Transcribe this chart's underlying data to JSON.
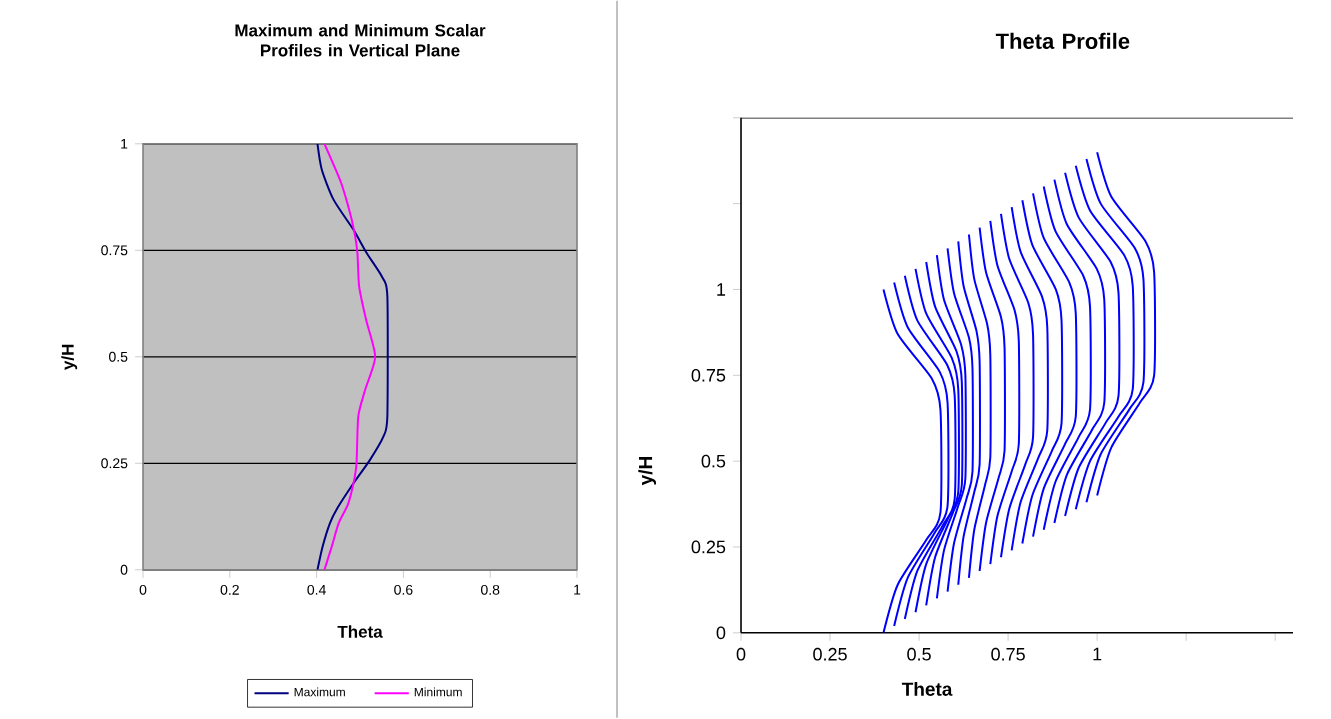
{
  "chart_data": [
    {
      "type": "line",
      "title": "Maximum and Minimum Scalar Profiles in Vertical Plane",
      "xlabel": "Theta",
      "ylabel": "y/H",
      "xlim": [
        0,
        1
      ],
      "ylim": [
        0,
        1
      ],
      "xticks": [
        0,
        0.2,
        0.4,
        0.6,
        0.8,
        1
      ],
      "yticks": [
        0,
        0.25,
        0.5,
        0.75,
        1
      ],
      "grid": "y",
      "legend": "bottom",
      "series": [
        {
          "name": "Maximum",
          "color": "#000080",
          "x": [
            0.402,
            0.414,
            0.431,
            0.448,
            0.485,
            0.523,
            0.554,
            0.563,
            0.563,
            0.55,
            0.515,
            0.485,
            0.439,
            0.412,
            0.402
          ],
          "values": [
            0,
            0.055,
            0.11,
            0.145,
            0.203,
            0.258,
            0.313,
            0.36,
            0.642,
            0.689,
            0.744,
            0.798,
            0.869,
            0.939,
            1.0
          ]
        },
        {
          "name": "Minimum",
          "color": "#ff00ff",
          "x": [
            0.418,
            0.435,
            0.451,
            0.472,
            0.485,
            0.492,
            0.496,
            0.512,
            0.535,
            0.514,
            0.498,
            0.494,
            0.486,
            0.473,
            0.454,
            0.418
          ],
          "values": [
            0,
            0.055,
            0.11,
            0.153,
            0.203,
            0.25,
            0.36,
            0.423,
            0.5,
            0.587,
            0.665,
            0.744,
            0.798,
            0.853,
            0.915,
            1.0
          ]
        }
      ]
    },
    {
      "type": "line",
      "title": "Theta Profile",
      "xlabel": "Theta",
      "ylabel": "y/H",
      "xlim": [
        0,
        1.55
      ],
      "ylim": [
        0,
        1.5
      ],
      "xticks": [
        0,
        0.25,
        0.5,
        0.75,
        1,
        {
          "value": 1.25,
          "label": null
        },
        {
          "value": 1.5,
          "label": null
        }
      ],
      "yticks": [
        0,
        0.25,
        0.5,
        0.75,
        1,
        {
          "value": 1.25,
          "label": null
        },
        {
          "value": 1.5,
          "label": null
        }
      ],
      "series": [
        {
          "color": "#0000ff",
          "x": [
            0.4,
            0.44,
            0.52,
            0.56,
            0.56,
            0.536,
            0.44,
            0.4
          ],
          "values": [
            0,
            0.14,
            0.27,
            0.35,
            0.65,
            0.74,
            0.87,
            1.0
          ]
        },
        {
          "color": "#0000ff",
          "x": [
            0.43,
            0.468,
            0.543,
            0.58,
            0.58,
            0.558,
            0.468,
            0.43
          ],
          "values": [
            0.02,
            0.16,
            0.29,
            0.37,
            0.67,
            0.76,
            0.89,
            1.02
          ]
        },
        {
          "color": "#0000ff",
          "x": [
            0.46,
            0.495,
            0.565,
            0.6,
            0.6,
            0.579,
            0.495,
            0.46
          ],
          "values": [
            0.04,
            0.18,
            0.31,
            0.39,
            0.69,
            0.78,
            0.91,
            1.04
          ]
        },
        {
          "color": "#0000ff",
          "x": [
            0.49,
            0.52,
            0.58,
            0.61,
            0.61,
            0.592,
            0.52,
            0.49
          ],
          "values": [
            0.06,
            0.2,
            0.33,
            0.41,
            0.71,
            0.8,
            0.93,
            1.06
          ]
        },
        {
          "color": "#0000ff",
          "x": [
            0.52,
            0.545,
            0.595,
            0.62,
            0.62,
            0.605,
            0.545,
            0.52
          ],
          "values": [
            0.08,
            0.22,
            0.35,
            0.43,
            0.73,
            0.82,
            0.95,
            1.08
          ]
        },
        {
          "color": "#0000ff",
          "x": [
            0.55,
            0.57,
            0.61,
            0.63,
            0.63,
            0.618,
            0.57,
            0.55
          ],
          "values": [
            0.1,
            0.24,
            0.37,
            0.45,
            0.75,
            0.84,
            0.97,
            1.1
          ]
        },
        {
          "color": "#0000ff",
          "x": [
            0.58,
            0.598,
            0.633,
            0.65,
            0.65,
            0.64,
            0.598,
            0.58
          ],
          "values": [
            0.12,
            0.26,
            0.39,
            0.47,
            0.77,
            0.86,
            0.99,
            1.12
          ]
        },
        {
          "color": "#0000ff",
          "x": [
            0.61,
            0.625,
            0.655,
            0.67,
            0.67,
            0.661,
            0.625,
            0.61
          ],
          "values": [
            0.14,
            0.28,
            0.41,
            0.49,
            0.79,
            0.88,
            1.01,
            1.14
          ]
        },
        {
          "color": "#0000ff",
          "x": [
            0.64,
            0.655,
            0.685,
            0.7,
            0.7,
            0.691,
            0.655,
            0.64
          ],
          "values": [
            0.16,
            0.3,
            0.43,
            0.51,
            0.81,
            0.9,
            1.03,
            1.16
          ]
        },
        {
          "color": "#0000ff",
          "x": [
            0.67,
            0.688,
            0.723,
            0.74,
            0.74,
            0.73,
            0.688,
            0.67
          ],
          "values": [
            0.18,
            0.32,
            0.45,
            0.53,
            0.83,
            0.92,
            1.05,
            1.18
          ]
        },
        {
          "color": "#0000ff",
          "x": [
            0.7,
            0.72,
            0.76,
            0.78,
            0.78,
            0.768,
            0.72,
            0.7
          ],
          "values": [
            0.2,
            0.34,
            0.47,
            0.55,
            0.85,
            0.94,
            1.07,
            1.2
          ]
        },
        {
          "color": "#0000ff",
          "x": [
            0.73,
            0.753,
            0.798,
            0.82,
            0.82,
            0.807,
            0.753,
            0.73
          ],
          "values": [
            0.22,
            0.36,
            0.49,
            0.57,
            0.87,
            0.96,
            1.09,
            1.22
          ]
        },
        {
          "color": "#0000ff",
          "x": [
            0.76,
            0.785,
            0.835,
            0.86,
            0.86,
            0.845,
            0.785,
            0.76
          ],
          "values": [
            0.24,
            0.38,
            0.51,
            0.59,
            0.89,
            0.98,
            1.11,
            1.24
          ]
        },
        {
          "color": "#0000ff",
          "x": [
            0.79,
            0.818,
            0.873,
            0.9,
            0.9,
            0.884,
            0.818,
            0.79
          ],
          "values": [
            0.26,
            0.4,
            0.53,
            0.61,
            0.91,
            1.0,
            1.13,
            1.26
          ]
        },
        {
          "color": "#0000ff",
          "x": [
            0.82,
            0.85,
            0.91,
            0.94,
            0.94,
            0.922,
            0.85,
            0.82
          ],
          "values": [
            0.28,
            0.42,
            0.55,
            0.63,
            0.93,
            1.02,
            1.15,
            1.28
          ]
        },
        {
          "color": "#0000ff",
          "x": [
            0.85,
            0.883,
            0.948,
            0.98,
            0.98,
            0.961,
            0.883,
            0.85
          ],
          "values": [
            0.3,
            0.44,
            0.57,
            0.65,
            0.95,
            1.04,
            1.17,
            1.3
          ]
        },
        {
          "color": "#0000ff",
          "x": [
            0.88,
            0.915,
            0.985,
            1.02,
            1.02,
            0.999,
            0.915,
            0.88
          ],
          "values": [
            0.32,
            0.46,
            0.59,
            0.67,
            0.97,
            1.06,
            1.19,
            1.32
          ]
        },
        {
          "color": "#0000ff",
          "x": [
            0.91,
            0.948,
            1.023,
            1.06,
            1.06,
            1.038,
            0.948,
            0.91
          ],
          "values": [
            0.34,
            0.48,
            0.61,
            0.69,
            0.99,
            1.08,
            1.21,
            1.34
          ]
        },
        {
          "color": "#0000ff",
          "x": [
            0.94,
            0.98,
            1.06,
            1.1,
            1.1,
            1.076,
            0.98,
            0.94
          ],
          "values": [
            0.36,
            0.5,
            0.63,
            0.71,
            1.01,
            1.1,
            1.23,
            1.36
          ]
        },
        {
          "color": "#0000ff",
          "x": [
            0.97,
            1.01,
            1.09,
            1.13,
            1.13,
            1.106,
            1.01,
            0.97
          ],
          "values": [
            0.38,
            0.52,
            0.65,
            0.73,
            1.03,
            1.12,
            1.25,
            1.38
          ]
        },
        {
          "color": "#0000ff",
          "x": [
            1.0,
            1.04,
            1.12,
            1.16,
            1.16,
            1.136,
            1.04,
            1.0
          ],
          "values": [
            0.4,
            0.54,
            0.67,
            0.75,
            1.05,
            1.14,
            1.27,
            1.4
          ]
        }
      ]
    }
  ]
}
